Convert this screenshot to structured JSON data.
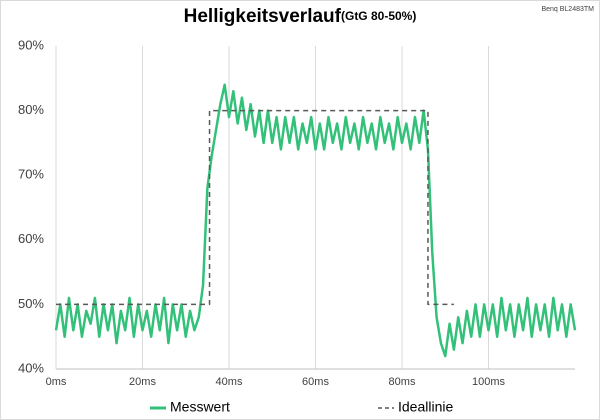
{
  "chart_data": {
    "type": "line",
    "title": "Helligkeitsverlauf",
    "subtitle": "(GtG 80-50%)",
    "annotation": "Benq BL2483TM",
    "xlim": [
      0,
      120
    ],
    "xticks": [
      {
        "value": 0,
        "label": "0ms"
      },
      {
        "value": 20,
        "label": "20ms"
      },
      {
        "value": 40,
        "label": "40ms"
      },
      {
        "value": 60,
        "label": "60ms"
      },
      {
        "value": 80,
        "label": "80ms"
      },
      {
        "value": 100,
        "label": "100ms"
      }
    ],
    "ylim": [
      40,
      90
    ],
    "yticks": [
      {
        "value": 40,
        "label": "40%"
      },
      {
        "value": 50,
        "label": "50%"
      },
      {
        "value": 60,
        "label": "60%"
      },
      {
        "value": 70,
        "label": "70%"
      },
      {
        "value": 80,
        "label": "80%"
      },
      {
        "value": 90,
        "label": "90%"
      }
    ],
    "grid": "x",
    "series": [
      {
        "name": "Messwert",
        "color": "#33c17a",
        "x": [
          0,
          1,
          2,
          3,
          4,
          5,
          6,
          7,
          8,
          9,
          10,
          11,
          12,
          13,
          14,
          15,
          16,
          17,
          18,
          19,
          20,
          21,
          22,
          23,
          24,
          25,
          26,
          27,
          28,
          29,
          30,
          31,
          32,
          33,
          34,
          35,
          36,
          37,
          38,
          39,
          40,
          41,
          42,
          43,
          44,
          45,
          46,
          47,
          48,
          49,
          50,
          51,
          52,
          53,
          54,
          55,
          56,
          57,
          58,
          59,
          60,
          61,
          62,
          63,
          64,
          65,
          66,
          67,
          68,
          69,
          70,
          71,
          72,
          73,
          74,
          75,
          76,
          77,
          78,
          79,
          80,
          81,
          82,
          83,
          84,
          85,
          86,
          87,
          88,
          89,
          90,
          91,
          92,
          93,
          94,
          95,
          96,
          97,
          98,
          99,
          100,
          101,
          102,
          103,
          104,
          105,
          106,
          107,
          108,
          109,
          110,
          111,
          112,
          113,
          114,
          115,
          116,
          117,
          118,
          119,
          120
        ],
        "values": [
          46,
          50,
          45,
          51,
          46,
          50,
          45,
          49,
          47,
          51,
          45,
          50,
          46,
          50,
          44,
          49,
          46,
          51,
          45,
          50,
          46,
          49,
          45,
          50,
          46,
          51,
          44,
          50,
          46,
          50,
          45,
          49,
          46,
          48,
          53,
          68,
          73,
          77,
          81,
          84,
          79,
          83,
          78,
          82,
          77,
          81,
          76,
          80,
          75,
          80,
          75,
          79,
          74,
          79,
          75,
          79,
          74,
          78,
          75,
          79,
          74,
          78,
          74,
          79,
          75,
          78,
          74,
          79,
          75,
          78,
          74,
          79,
          75,
          78,
          74,
          79,
          75,
          78,
          74,
          79,
          75,
          78,
          74,
          79,
          75,
          80,
          74,
          58,
          48,
          44,
          42,
          47,
          43,
          48,
          44,
          49,
          45,
          50,
          45,
          50,
          46,
          50,
          45,
          51,
          46,
          50,
          45,
          50,
          46,
          51,
          45,
          50,
          46,
          50,
          45,
          51,
          46,
          50,
          45,
          50,
          46
        ]
      },
      {
        "name": "Ideallinie",
        "color": "#595959",
        "dashed": true,
        "x": [
          0,
          35.5,
          35.5,
          86,
          86,
          92
        ],
        "values": [
          50,
          50,
          80,
          80,
          50,
          50
        ]
      }
    ]
  }
}
